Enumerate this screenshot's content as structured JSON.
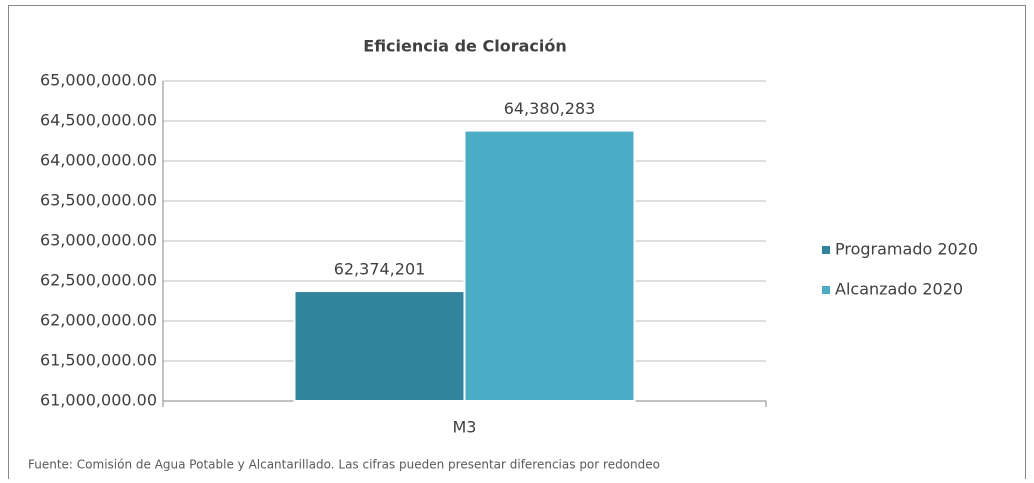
{
  "chart_data": {
    "type": "bar",
    "title": "Eficiencia de Cloración",
    "categories": [
      "M3"
    ],
    "series": [
      {
        "name": "Programado 2020",
        "color": "#31849b",
        "values": [
          62374201
        ],
        "value_labels": [
          "62,374,201"
        ]
      },
      {
        "name": "Alcanzado 2020",
        "color": "#4bacc6",
        "values": [
          64380283
        ],
        "value_labels": [
          "64,380,283"
        ]
      }
    ],
    "ylim": [
      61000000,
      65000000
    ],
    "yticks": [
      {
        "value": 61000000,
        "label": "61,000,000.00"
      },
      {
        "value": 61500000,
        "label": "61,500,000.00"
      },
      {
        "value": 62000000,
        "label": "62,000,000.00"
      },
      {
        "value": 62500000,
        "label": "62,500,000.00"
      },
      {
        "value": 63000000,
        "label": "63,000,000.00"
      },
      {
        "value": 63500000,
        "label": "63,500,000.00"
      },
      {
        "value": 64000000,
        "label": "64,000,000.00"
      },
      {
        "value": 64500000,
        "label": "64,500,000.00"
      },
      {
        "value": 65000000,
        "label": "65,000,000.00"
      }
    ],
    "grid": true,
    "legend": "right",
    "note": "Fuente:  Comisión de Agua Potable y Alcantarillado. Las cifras pueden presentar diferencias por redondeo"
  }
}
